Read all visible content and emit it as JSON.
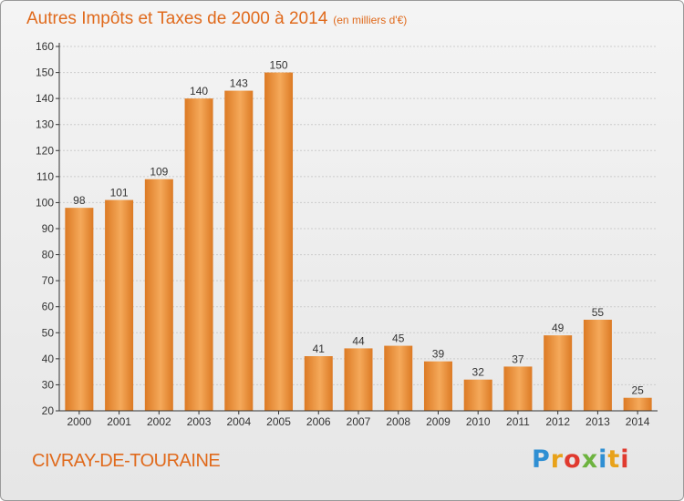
{
  "header": {
    "title": "Autres Impôts et Taxes de 2000 à 2014",
    "unit": "(en milliers d'€)"
  },
  "footer": {
    "commune": "CIVRAY-DE-TOURAINE",
    "logo_letters": [
      "P",
      "r",
      "o",
      "x",
      "i",
      "t",
      "i"
    ],
    "logo_colors": [
      "#2f8fd3",
      "#e8a21a",
      "#e03a2f",
      "#6db33f",
      "#2f8fd3",
      "#e8a21a",
      "#e03a2f"
    ]
  },
  "colors": {
    "bar_light": "#f5a95a",
    "bar_dark": "#dc7a24",
    "axis": "#333333",
    "grid": "#cccccc",
    "text": "#333333"
  },
  "chart_data": {
    "type": "bar",
    "categories": [
      "2000",
      "2001",
      "2002",
      "2003",
      "2004",
      "2005",
      "2006",
      "2007",
      "2008",
      "2009",
      "2010",
      "2011",
      "2012",
      "2013",
      "2014"
    ],
    "values": [
      98,
      101,
      109,
      140,
      143,
      150,
      41,
      44,
      45,
      39,
      32,
      37,
      49,
      55,
      25
    ],
    "title": "Autres Impôts et Taxes de 2000 à 2014",
    "ylim": [
      20,
      160
    ],
    "yticks": [
      20,
      30,
      40,
      50,
      60,
      70,
      80,
      90,
      100,
      110,
      120,
      130,
      140,
      150,
      160
    ],
    "grid": true
  }
}
